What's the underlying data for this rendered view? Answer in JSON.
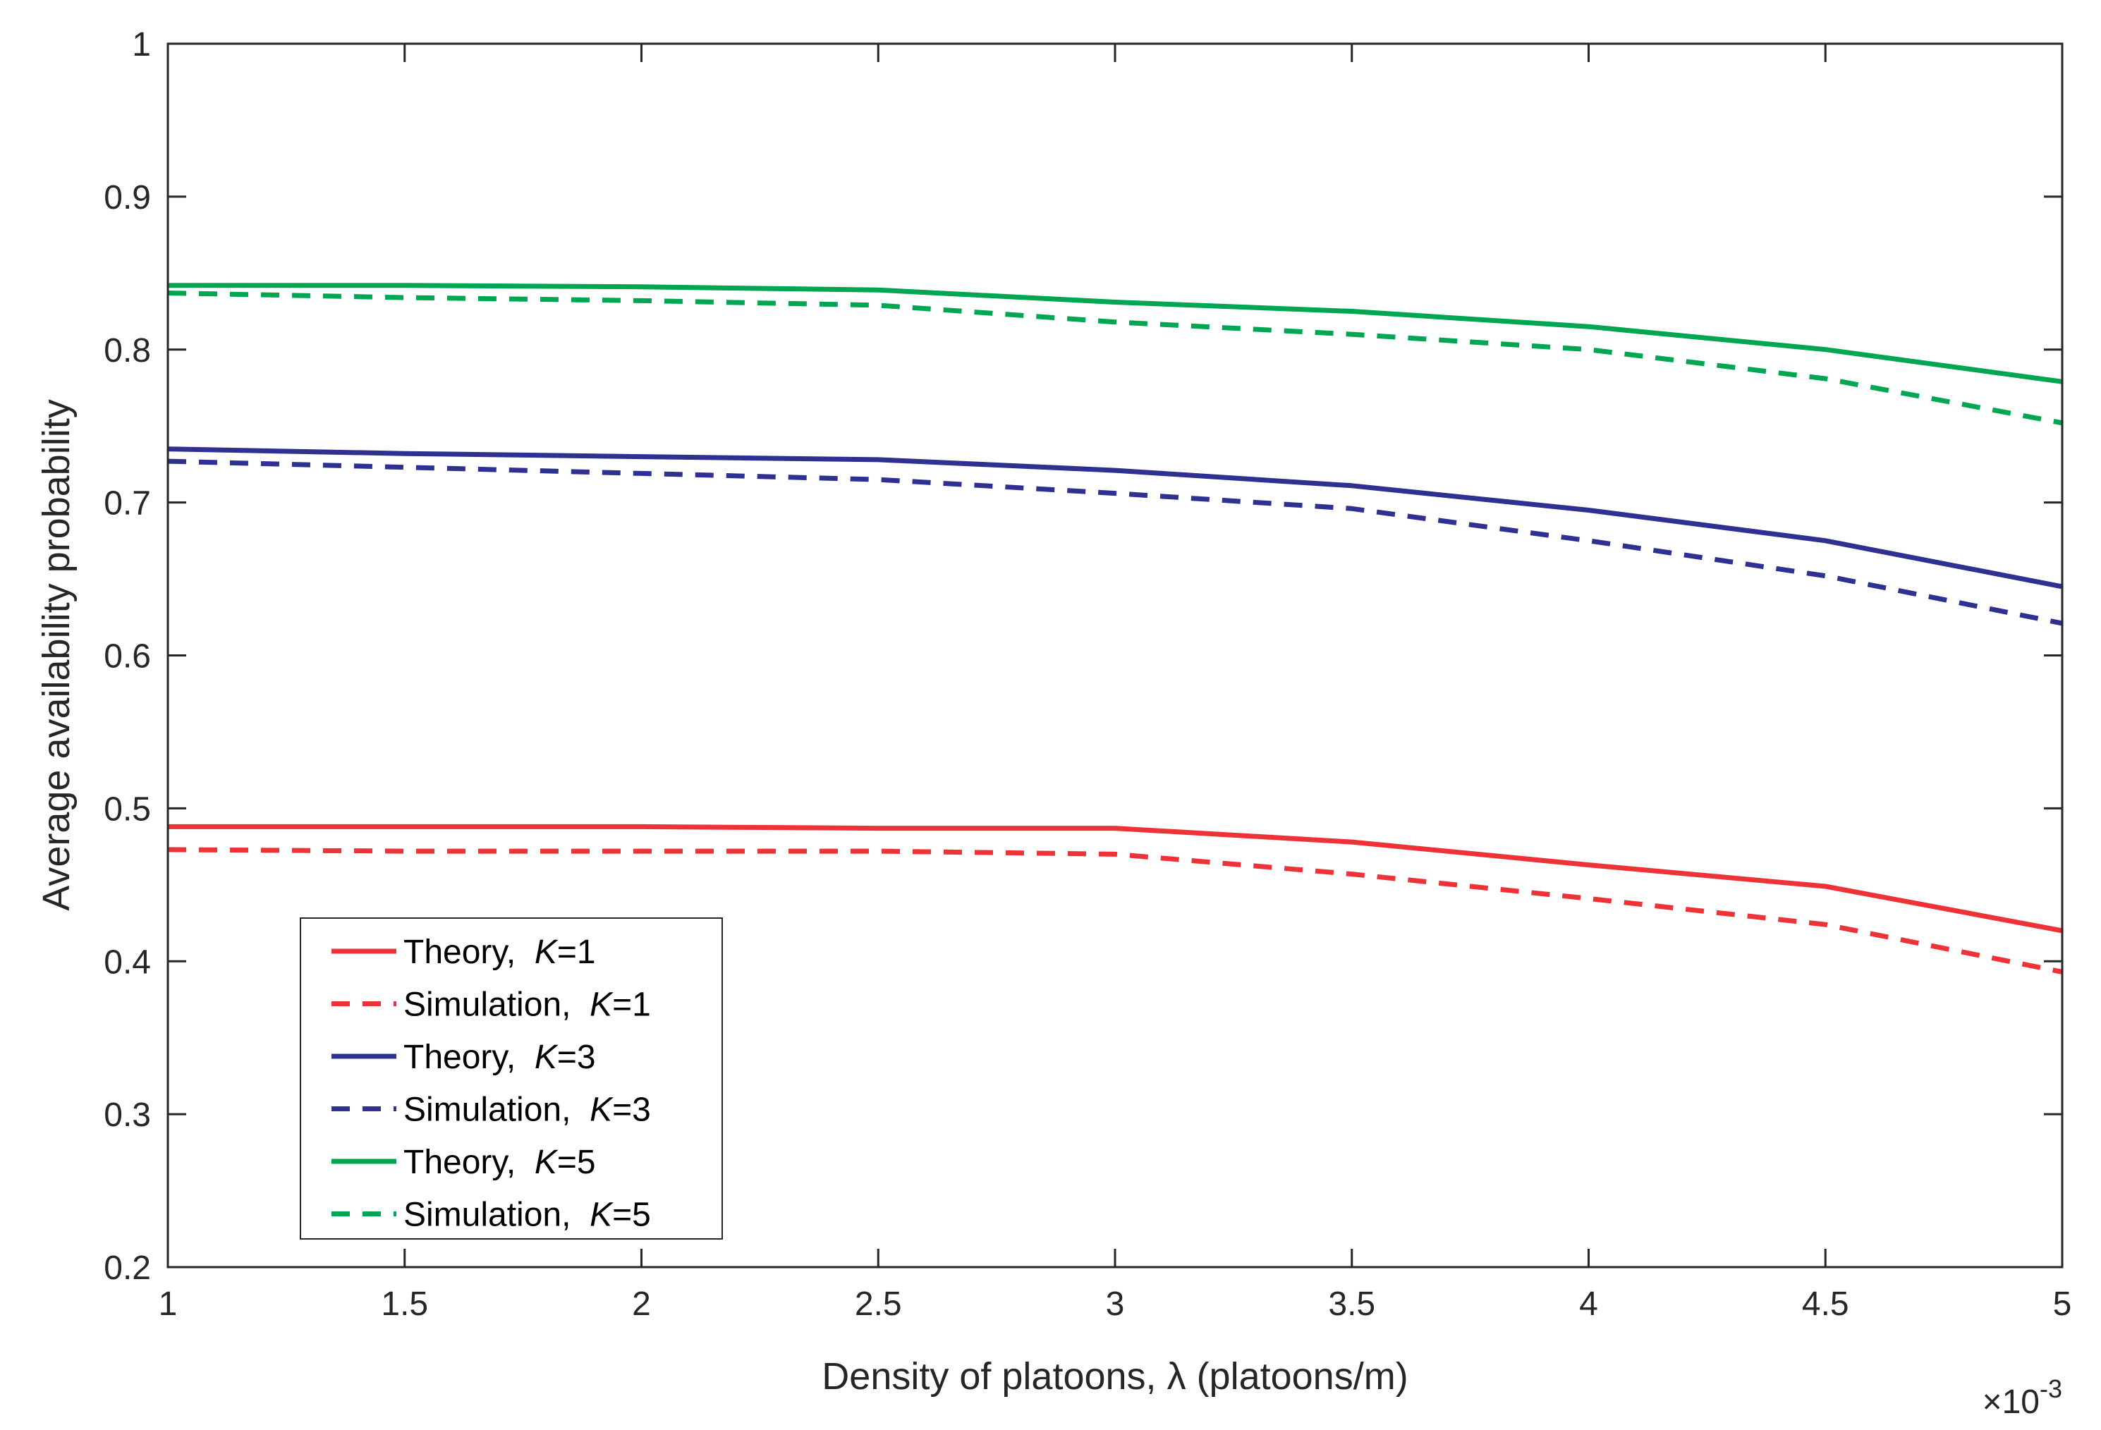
{
  "chart_data": {
    "type": "line",
    "title": "",
    "xlabel": "Density of platoons, λ (platoons/m)",
    "ylabel": "Average availability probability",
    "x_exponent_multiplier": "×10",
    "x_exponent_power": "-3",
    "xlim": [
      1,
      5
    ],
    "ylim": [
      0.2,
      1
    ],
    "xticks": [
      "1",
      "1.5",
      "2",
      "2.5",
      "3",
      "3.5",
      "4",
      "4.5",
      "5"
    ],
    "yticks": [
      "0.2",
      "0.3",
      "0.4",
      "0.5",
      "0.6",
      "0.7",
      "0.8",
      "0.9",
      "1"
    ],
    "grid": false,
    "legend_position": "bottom-left",
    "x": [
      1,
      1.5,
      2,
      2.5,
      3,
      3.5,
      4,
      4.5,
      5
    ],
    "series": [
      {
        "name": "Theory",
        "k": "1",
        "color": "#ee3338",
        "dash": "solid",
        "values": [
          0.488,
          0.488,
          0.488,
          0.487,
          0.487,
          0.478,
          0.463,
          0.449,
          0.42
        ]
      },
      {
        "name": "Simulation",
        "k": "1",
        "color": "#ee3338",
        "dash": "dashed",
        "values": [
          0.473,
          0.472,
          0.472,
          0.472,
          0.47,
          0.457,
          0.441,
          0.424,
          0.393
        ]
      },
      {
        "name": "Theory",
        "k": "3",
        "color": "#2e3192",
        "dash": "solid",
        "values": [
          0.735,
          0.732,
          0.73,
          0.728,
          0.721,
          0.711,
          0.695,
          0.675,
          0.645
        ]
      },
      {
        "name": "Simulation",
        "k": "3",
        "color": "#2e3192",
        "dash": "dashed",
        "values": [
          0.727,
          0.723,
          0.719,
          0.715,
          0.706,
          0.696,
          0.675,
          0.652,
          0.621
        ]
      },
      {
        "name": "Theory",
        "k": "5",
        "color": "#00a651",
        "dash": "solid",
        "values": [
          0.842,
          0.842,
          0.841,
          0.839,
          0.831,
          0.825,
          0.815,
          0.8,
          0.779
        ]
      },
      {
        "name": "Simulation",
        "k": "5",
        "color": "#00a651",
        "dash": "dashed",
        "values": [
          0.837,
          0.834,
          0.832,
          0.829,
          0.818,
          0.81,
          0.8,
          0.781,
          0.752
        ]
      }
    ]
  }
}
